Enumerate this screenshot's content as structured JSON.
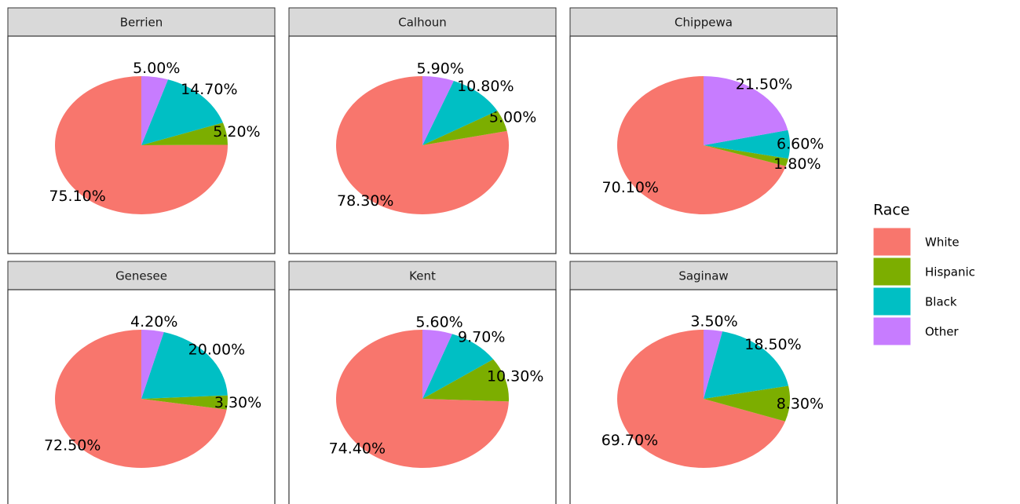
{
  "chart_data": {
    "type": "pie",
    "legend_title": "Race",
    "categories": [
      "White",
      "Hispanic",
      "Black",
      "Other"
    ],
    "colors": [
      "#F8766D",
      "#7CAE00",
      "#00BFC4",
      "#C77CFF"
    ],
    "facets": [
      {
        "title": "Berrien",
        "values": [
          75.1,
          5.2,
          14.7,
          5.0
        ],
        "value_labels": [
          "75.10%",
          "5.20%",
          "14.70%",
          "5.00%"
        ]
      },
      {
        "title": "Calhoun",
        "values": [
          78.3,
          5.0,
          10.8,
          5.9
        ],
        "value_labels": [
          "78.30%",
          "5.00%",
          "10.80%",
          "5.90%"
        ]
      },
      {
        "title": "Chippewa",
        "values": [
          70.1,
          1.8,
          6.6,
          21.5
        ],
        "value_labels": [
          "70.10%",
          "1.80%",
          "6.60%",
          "21.50%"
        ]
      },
      {
        "title": "Genesee",
        "values": [
          72.5,
          3.3,
          20.0,
          4.2
        ],
        "value_labels": [
          "72.50%",
          "3.30%",
          "20.00%",
          "4.20%"
        ]
      },
      {
        "title": "Kent",
        "values": [
          74.4,
          10.3,
          9.7,
          5.6
        ],
        "value_labels": [
          "74.40%",
          "10.30%",
          "9.70%",
          "5.60%"
        ]
      },
      {
        "title": "Saginaw",
        "values": [
          69.7,
          8.3,
          18.5,
          3.5
        ],
        "value_labels": [
          "69.70%",
          "8.30%",
          "18.50%",
          "3.50%"
        ]
      }
    ]
  }
}
